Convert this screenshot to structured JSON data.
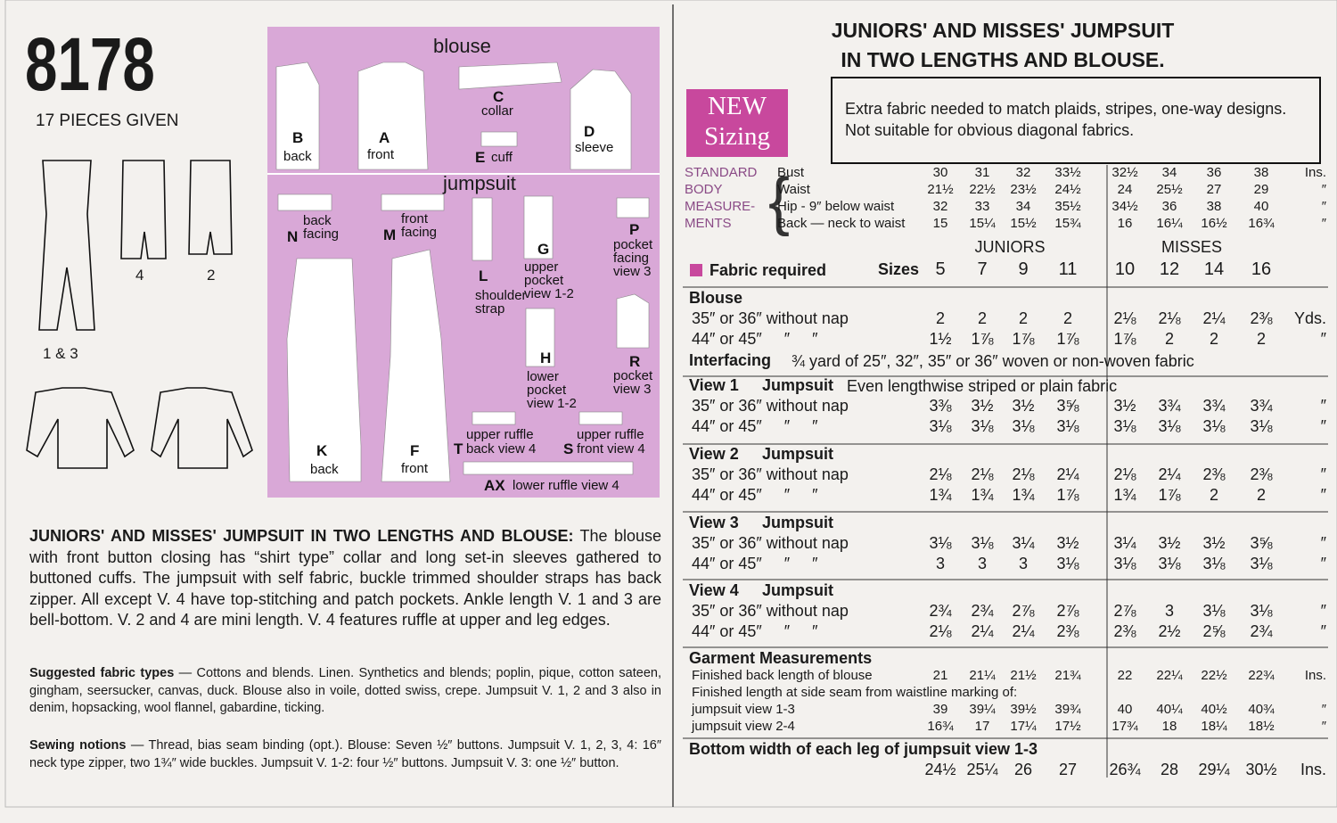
{
  "pattern": {
    "number": "8178",
    "pieces_given": "17 PIECES GIVEN",
    "views": [
      "4",
      "2",
      "1 & 3"
    ]
  },
  "pieces": {
    "blouse_title": "blouse",
    "jumpsuit_title": "jumpsuit",
    "items": [
      {
        "letter": "B",
        "label": "back"
      },
      {
        "letter": "A",
        "label": "front"
      },
      {
        "letter": "C",
        "label": "collar"
      },
      {
        "letter": "E",
        "label": "cuff"
      },
      {
        "letter": "D",
        "label": "sleeve"
      },
      {
        "letter": "N",
        "label": "back facing"
      },
      {
        "letter": "M",
        "label": "front facing"
      },
      {
        "letter": "L",
        "label": "shoulder strap"
      },
      {
        "letter": "G",
        "label": "upper pocket view 1-2"
      },
      {
        "letter": "P",
        "label": "pocket facing view 3"
      },
      {
        "letter": "H",
        "label": "lower pocket view 1-2"
      },
      {
        "letter": "R",
        "label": "pocket view 3"
      },
      {
        "letter": "K",
        "label": "back"
      },
      {
        "letter": "F",
        "label": "front"
      },
      {
        "letter": "T",
        "label": "upper ruffle back view 4"
      },
      {
        "letter": "S",
        "label": "upper ruffle front view 4"
      },
      {
        "letter": "AX",
        "label": "lower ruffle view 4"
      }
    ]
  },
  "description": {
    "lead": "JUNIORS' AND MISSES' JUMPSUIT IN TWO LENGTHS AND BLOUSE:",
    "text": "The blouse with front button closing has “shirt type” collar and long set-in sleeves gathered to buttoned cuffs. The jumpsuit with self fabric, buckle trimmed shoulder straps has back zipper. All except V. 4 have top-stitching and patch pockets. Ankle length V. 1 and 3 are bell-bottom. V. 2 and 4 are mini length. V. 4 features ruffle at upper and leg edges."
  },
  "fabric_types": {
    "label": "Suggested fabric types",
    "text": "— Cottons and blends. Linen. Synthetics and blends; poplin, pique, cotton sateen, gingham, seersucker, canvas, duck. Blouse also in voile, dotted swiss, crepe. Jumpsuit V. 1, 2 and 3 also in denim, hopsacking, wool flannel, gabardine, ticking."
  },
  "notions": {
    "label": "Sewing notions",
    "text": "— Thread, bias seam binding (opt.). Blouse: Seven ½″ buttons. Jumpsuit V. 1, 2, 3, 4: 16″ neck type zipper, two 1¾″ wide buckles. Jumpsuit V. 1-2: four ½″ buttons. Jumpsuit V. 3: one ½″ button."
  },
  "title": [
    "JUNIORS' AND MISSES' JUMPSUIT",
    "IN TWO LENGTHS AND BLOUSE."
  ],
  "badge": [
    "NEW",
    "Sizing"
  ],
  "notice": [
    "Extra fabric needed to match plaids, stripes, one-way designs.",
    "Not suitable for obvious diagonal fabrics."
  ],
  "body_measurements": {
    "label": [
      "STANDARD",
      "BODY",
      "MEASURE-",
      "MENTS"
    ],
    "rows": [
      {
        "label": "Bust",
        "juniors": [
          "30",
          "31",
          "32",
          "33½"
        ],
        "misses": [
          "32½",
          "34",
          "36",
          "38"
        ],
        "unit": "Ins."
      },
      {
        "label": "Waist",
        "juniors": [
          "21½",
          "22½",
          "23½",
          "24½"
        ],
        "misses": [
          "24",
          "25½",
          "27",
          "29"
        ],
        "unit": "″"
      },
      {
        "label": "Hip - 9″ below waist",
        "juniors": [
          "32",
          "33",
          "34",
          "35½"
        ],
        "misses": [
          "34½",
          "36",
          "38",
          "40"
        ],
        "unit": "″"
      },
      {
        "label": "Back — neck to waist",
        "juniors": [
          "15",
          "15¼",
          "15½",
          "15¾"
        ],
        "misses": [
          "16",
          "16¼",
          "16½",
          "16¾"
        ],
        "unit": "″"
      }
    ]
  },
  "fabric": {
    "label": "Fabric required",
    "sizes_label": "Sizes",
    "juniors_label": "JUNIORS",
    "misses_label": "MISSES",
    "junior_sizes": [
      "5",
      "7",
      "9",
      "11"
    ],
    "misses_sizes": [
      "10",
      "12",
      "14",
      "16"
    ],
    "sections": [
      {
        "title": "Blouse",
        "rows": [
          {
            "label": "35″ or 36″ without nap",
            "juniors": [
              "2",
              "2",
              "2",
              "2"
            ],
            "misses": [
              "2⅛",
              "2⅛",
              "2¼",
              "2⅜"
            ],
            "unit": "Yds."
          },
          {
            "label": "44″ or 45″     ″     ″",
            "juniors": [
              "1½",
              "1⅞",
              "1⅞",
              "1⅞"
            ],
            "misses": [
              "1⅞",
              "2",
              "2",
              "2"
            ],
            "unit": "″"
          }
        ]
      },
      {
        "title": "Interfacing",
        "note": "¾ yard of 25″, 32″, 35″ or 36″ woven or non-woven fabric"
      },
      {
        "title": "View 1",
        "subtitle": "Jumpsuit",
        "note": "Even lengthwise striped or plain fabric",
        "rows": [
          {
            "label": "35″ or 36″ without nap",
            "juniors": [
              "3⅜",
              "3½",
              "3½",
              "3⅝"
            ],
            "misses": [
              "3½",
              "3¾",
              "3¾",
              "3¾"
            ],
            "unit": "″"
          },
          {
            "label": "44″ or 45″     ″     ″",
            "juniors": [
              "3⅛",
              "3⅛",
              "3⅛",
              "3⅛"
            ],
            "misses": [
              "3⅛",
              "3⅛",
              "3⅛",
              "3⅛"
            ],
            "unit": "″"
          }
        ]
      },
      {
        "title": "View 2",
        "subtitle": "Jumpsuit",
        "rows": [
          {
            "label": "35″ or 36″ without nap",
            "juniors": [
              "2⅛",
              "2⅛",
              "2⅛",
              "2¼"
            ],
            "misses": [
              "2⅛",
              "2¼",
              "2⅜",
              "2⅜"
            ],
            "unit": "″"
          },
          {
            "label": "44″ or 45″     ″     ″",
            "juniors": [
              "1¾",
              "1¾",
              "1¾",
              "1⅞"
            ],
            "misses": [
              "1¾",
              "1⅞",
              "2",
              "2"
            ],
            "unit": "″"
          }
        ]
      },
      {
        "title": "View 3",
        "subtitle": "Jumpsuit",
        "rows": [
          {
            "label": "35″ or 36″ without nap",
            "juniors": [
              "3⅛",
              "3⅛",
              "3¼",
              "3½"
            ],
            "misses": [
              "3¼",
              "3½",
              "3½",
              "3⅝"
            ],
            "unit": "″"
          },
          {
            "label": "44″ or 45″     ″     ″",
            "juniors": [
              "3",
              "3",
              "3",
              "3⅛"
            ],
            "misses": [
              "3⅛",
              "3⅛",
              "3⅛",
              "3⅛"
            ],
            "unit": "″"
          }
        ]
      },
      {
        "title": "View 4",
        "subtitle": "Jumpsuit",
        "rows": [
          {
            "label": "35″ or 36″ without nap",
            "juniors": [
              "2¾",
              "2¾",
              "2⅞",
              "2⅞"
            ],
            "misses": [
              "2⅞",
              "3",
              "3⅛",
              "3⅛"
            ],
            "unit": "″"
          },
          {
            "label": "44″ or 45″     ″     ″",
            "juniors": [
              "2⅛",
              "2¼",
              "2¼",
              "2⅜"
            ],
            "misses": [
              "2⅜",
              "2½",
              "2⅝",
              "2¾"
            ],
            "unit": "″"
          }
        ]
      },
      {
        "title": "Garment Measurements",
        "rows": [
          {
            "label": "Finished back length of blouse",
            "juniors": [
              "21",
              "21¼",
              "21½",
              "21¾"
            ],
            "misses": [
              "22",
              "22¼",
              "22½",
              "22¾"
            ],
            "unit": "Ins."
          },
          {
            "label": "Finished length at side seam from waistline marking of:"
          },
          {
            "label": "jumpsuit view 1-3",
            "juniors": [
              "39",
              "39¼",
              "39½",
              "39¾"
            ],
            "misses": [
              "40",
              "40¼",
              "40½",
              "40¾"
            ],
            "unit": "″"
          },
          {
            "label": "jumpsuit view 2-4",
            "juniors": [
              "16¾",
              "17",
              "17¼",
              "17½"
            ],
            "misses": [
              "17¾",
              "18",
              "18¼",
              "18½"
            ],
            "unit": "″"
          }
        ]
      },
      {
        "title": "Bottom width of each leg of jumpsuit view 1-3",
        "rows": [
          {
            "juniors": [
              "24½",
              "25¼",
              "26",
              "27"
            ],
            "misses": [
              "26¾",
              "28",
              "29¼",
              "30½"
            ],
            "unit": "Ins."
          }
        ]
      }
    ]
  }
}
